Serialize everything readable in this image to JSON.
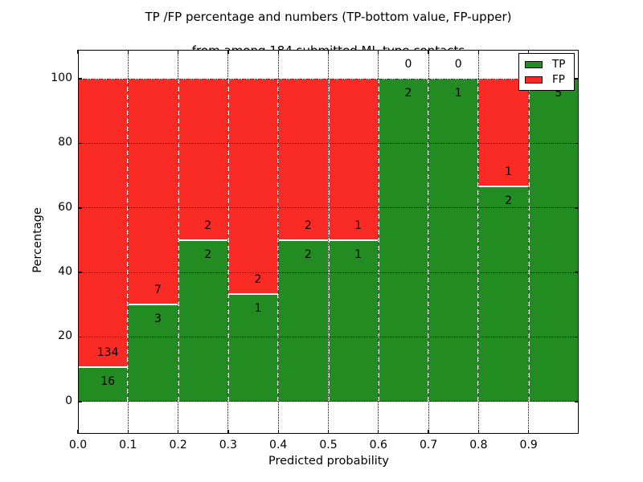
{
  "title": {
    "line1": "TP /FP percentage and numbers (TP-bottom value, FP-upper)",
    "line2": "from among 184 submitted ML-type contacts"
  },
  "axes": {
    "xlabel": "Predicted probability",
    "ylabel": "Percentage"
  },
  "legend": {
    "position": "upper right",
    "items": [
      {
        "label": "TP",
        "color": "#228B22"
      },
      {
        "label": "FP",
        "color": "#FA2A25"
      }
    ]
  },
  "chart_data": {
    "type": "bar",
    "stacked": true,
    "title": "TP /FP percentage and numbers (TP-bottom value, FP-upper)\nfrom among 184 submitted ML-type contacts",
    "xlabel": "Predicted probability",
    "ylabel": "Percentage",
    "total_contacts": 184,
    "bin_edges": [
      0.0,
      0.1,
      0.2,
      0.3,
      0.4,
      0.5,
      0.6,
      0.7,
      0.8,
      0.9,
      1.0
    ],
    "categories": [
      "0.0-0.1",
      "0.1-0.2",
      "0.2-0.3",
      "0.3-0.4",
      "0.4-0.5",
      "0.5-0.6",
      "0.6-0.7",
      "0.7-0.8",
      "0.8-0.9",
      "0.9-1.0"
    ],
    "series": [
      {
        "name": "TP",
        "color": "#228B22",
        "counts": [
          16,
          3,
          2,
          1,
          2,
          1,
          2,
          1,
          2,
          5
        ],
        "percent": [
          10.6667,
          30,
          50,
          33.3333,
          50,
          50,
          100,
          100,
          66.6667,
          100
        ]
      },
      {
        "name": "FP",
        "color": "#FA2A25",
        "counts": [
          134,
          7,
          2,
          2,
          2,
          1,
          0,
          0,
          1,
          0
        ],
        "percent": [
          89.3333,
          70,
          50,
          66.6667,
          50,
          50,
          0,
          0,
          33.3333,
          0
        ]
      }
    ],
    "xticks": [
      "0.0",
      "0.1",
      "0.2",
      "0.3",
      "0.4",
      "0.5",
      "0.6",
      "0.7",
      "0.8",
      "0.9"
    ],
    "yticks": [
      0,
      20,
      40,
      60,
      80,
      100
    ],
    "xlim": [
      0,
      1
    ],
    "ylim": [
      -10,
      109
    ],
    "grid": true,
    "grid_style": "dotted",
    "bar_edge_color": "#ffffff",
    "legend_position": "upper right"
  }
}
